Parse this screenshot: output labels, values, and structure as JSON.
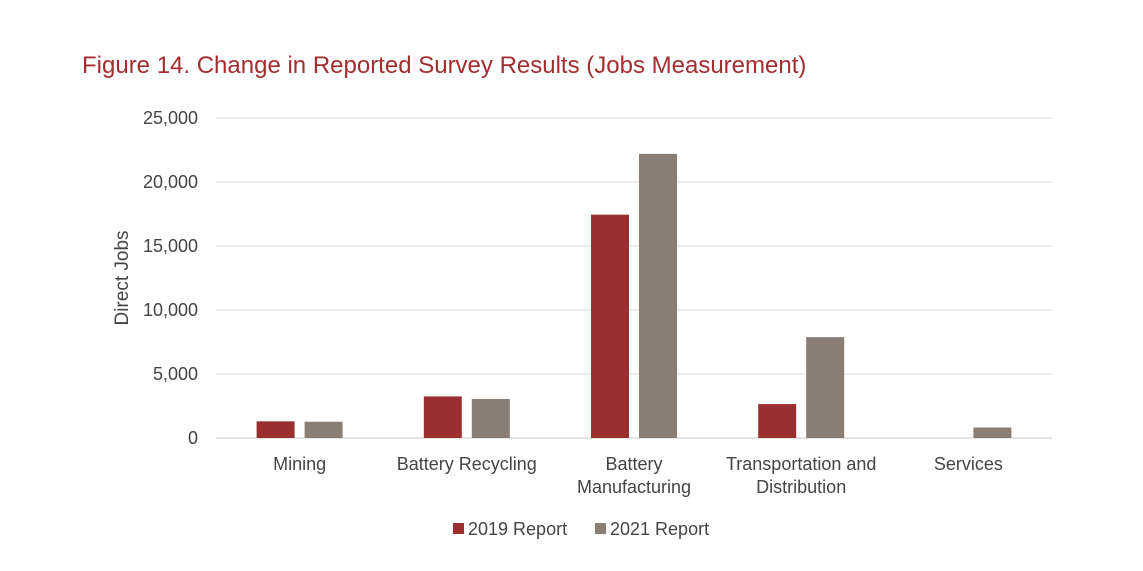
{
  "chart_data": {
    "type": "bar",
    "title": "Figure 14. Change in Reported Survey Results (Jobs Measurement)",
    "xlabel": "",
    "ylabel": "Direct Jobs",
    "categories": [
      [
        "Mining"
      ],
      [
        "Battery Recycling"
      ],
      [
        "Battery",
        "Manufacturing"
      ],
      [
        "Transportation and",
        "Distribution"
      ],
      [
        "Services"
      ]
    ],
    "series": [
      {
        "name": "2019 Report",
        "color": "#9b2f2f",
        "values": [
          1300,
          3250,
          17450,
          2650,
          0
        ]
      },
      {
        "name": "2021 Report",
        "color": "#8a7d73",
        "values": [
          1270,
          3050,
          22200,
          7880,
          820
        ]
      }
    ],
    "ylim": [
      0,
      25000
    ],
    "yticks": [
      0,
      5000,
      10000,
      15000,
      20000,
      25000
    ],
    "ytick_labels": [
      "0",
      "5,000",
      "10,000",
      "15,000",
      "20,000",
      "25,000"
    ],
    "grid": true,
    "legend_position": "bottom"
  }
}
